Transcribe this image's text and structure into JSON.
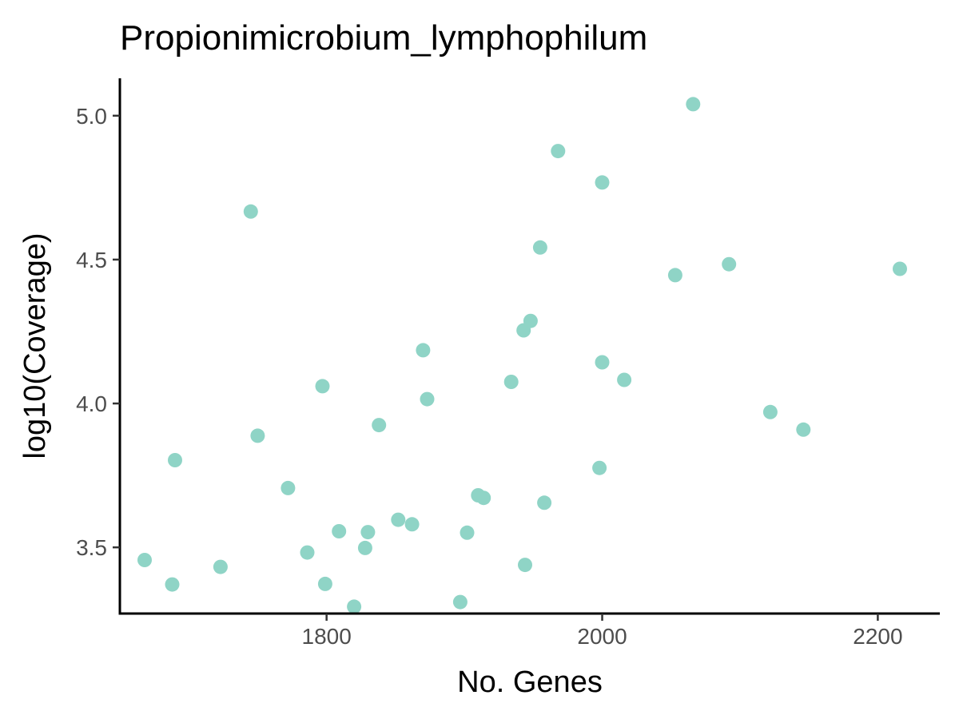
{
  "chart_data": {
    "type": "scatter",
    "title": "Propionimicrobium_lymphophilum",
    "xlabel": "No. Genes",
    "ylabel": "log10(Coverage)",
    "xlim": [
      1650,
      2245
    ],
    "ylim": [
      3.27,
      5.13
    ],
    "xticks": [
      1800,
      2000,
      2200
    ],
    "xtick_labels": [
      "1800",
      "2000",
      "2200"
    ],
    "yticks": [
      3.5,
      4.0,
      4.5,
      5.0
    ],
    "ytick_labels": [
      "3.5",
      "4.0",
      "4.5",
      "5.0"
    ],
    "grid": false,
    "legend": "none",
    "point_color": "#8fd4c6",
    "points": [
      {
        "x": 1668,
        "y": 3.456
      },
      {
        "x": 1688,
        "y": 3.371
      },
      {
        "x": 1690,
        "y": 3.803
      },
      {
        "x": 1723,
        "y": 3.432
      },
      {
        "x": 1745,
        "y": 4.667
      },
      {
        "x": 1750,
        "y": 3.888
      },
      {
        "x": 1772,
        "y": 3.706
      },
      {
        "x": 1786,
        "y": 3.482
      },
      {
        "x": 1797,
        "y": 4.06
      },
      {
        "x": 1799,
        "y": 3.373
      },
      {
        "x": 1809,
        "y": 3.556
      },
      {
        "x": 1820,
        "y": 3.294
      },
      {
        "x": 1828,
        "y": 3.498
      },
      {
        "x": 1830,
        "y": 3.553
      },
      {
        "x": 1838,
        "y": 3.925
      },
      {
        "x": 1852,
        "y": 3.596
      },
      {
        "x": 1862,
        "y": 3.58
      },
      {
        "x": 1870,
        "y": 4.185
      },
      {
        "x": 1873,
        "y": 4.015
      },
      {
        "x": 1897,
        "y": 3.31
      },
      {
        "x": 1902,
        "y": 3.551
      },
      {
        "x": 1910,
        "y": 3.681
      },
      {
        "x": 1914,
        "y": 3.672
      },
      {
        "x": 1934,
        "y": 4.075
      },
      {
        "x": 1943,
        "y": 4.254
      },
      {
        "x": 1944,
        "y": 3.439
      },
      {
        "x": 1948,
        "y": 4.287
      },
      {
        "x": 1955,
        "y": 4.542
      },
      {
        "x": 1958,
        "y": 3.655
      },
      {
        "x": 1968,
        "y": 4.877
      },
      {
        "x": 1998,
        "y": 3.776
      },
      {
        "x": 2000,
        "y": 4.768
      },
      {
        "x": 2000,
        "y": 4.143
      },
      {
        "x": 2016,
        "y": 4.082
      },
      {
        "x": 2053,
        "y": 4.446
      },
      {
        "x": 2066,
        "y": 5.04
      },
      {
        "x": 2092,
        "y": 4.484
      },
      {
        "x": 2122,
        "y": 3.97
      },
      {
        "x": 2146,
        "y": 3.909
      },
      {
        "x": 2216,
        "y": 4.468
      }
    ]
  }
}
